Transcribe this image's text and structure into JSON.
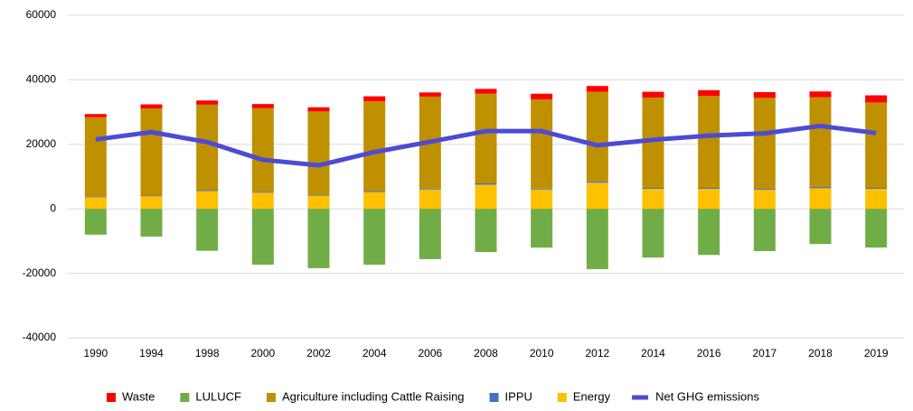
{
  "chart_data": {
    "type": "bar",
    "categories": [
      "1990",
      "1994",
      "1998",
      "2000",
      "2002",
      "2004",
      "2006",
      "2008",
      "2010",
      "2012",
      "2014",
      "2016",
      "2017",
      "2018",
      "2019"
    ],
    "series": [
      {
        "name": "Waste",
        "color": "#ff0000",
        "values": [
          1000,
          1300,
          1300,
          1300,
          1300,
          1500,
          1300,
          1500,
          1800,
          1800,
          1800,
          1800,
          1800,
          1800,
          2200
        ]
      },
      {
        "name": "LULUCF",
        "color": "#70ad47",
        "values": [
          -8000,
          -8600,
          -13000,
          -17300,
          -18400,
          -17300,
          -15600,
          -13400,
          -12000,
          -18700,
          -15100,
          -14300,
          -13100,
          -10900,
          -12000
        ]
      },
      {
        "name": "Agriculture including Cattle Raising",
        "color": "#bf9000",
        "values": [
          24600,
          27000,
          26500,
          25900,
          26000,
          27900,
          28500,
          27800,
          27600,
          27800,
          28000,
          28500,
          28200,
          27800,
          26500
        ]
      },
      {
        "name": "IPPU",
        "color": "#4472c4",
        "values": [
          200,
          200,
          300,
          300,
          200,
          300,
          300,
          400,
          300,
          400,
          300,
          300,
          300,
          400,
          300
        ]
      },
      {
        "name": "Energy",
        "color": "#ffc000",
        "values": [
          3600,
          3900,
          5500,
          5000,
          4000,
          5200,
          6000,
          7500,
          6000,
          8100,
          6200,
          6200,
          5900,
          6400,
          6200
        ]
      },
      {
        "name": "Net GHG emissions",
        "color": "#4b4bd6",
        "type": "line",
        "values": [
          21500,
          23800,
          20700,
          15200,
          13500,
          17600,
          20800,
          24100,
          24100,
          19700,
          21400,
          22700,
          23400,
          25700,
          23500
        ]
      }
    ],
    "ylim": [
      -40000,
      60000
    ],
    "yticks": [
      -40000,
      -20000,
      0,
      20000,
      40000,
      60000
    ],
    "grid": true,
    "legend": "bottom"
  }
}
